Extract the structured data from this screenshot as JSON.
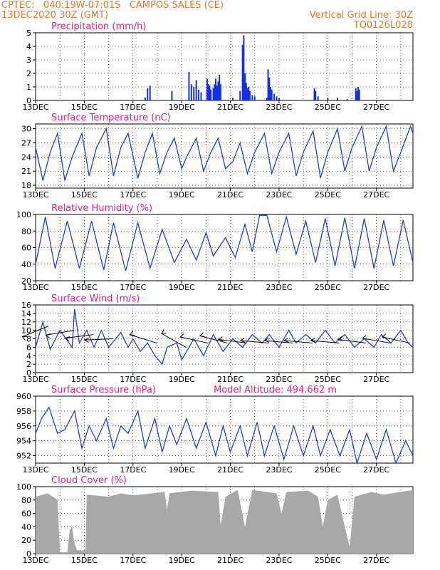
{
  "header": {
    "line1": "CPTEC:   040:19W-07:01S   CAMPOS SALES (CE)",
    "line2": "13DEC2020 30Z (GMT)",
    "grid_note": "Vertical Grid Line: 30Z",
    "code": "TQ0126L028"
  },
  "colors": {
    "header": "#e8782a",
    "title": "#e0208c",
    "line": "#1f3fd8",
    "bar": "#1430e0",
    "cloud": "#a8a8a8",
    "wind_vector": "#000000"
  },
  "x_ticks": [
    "13DEC",
    "15DEC",
    "17DEC",
    "19DEC",
    "21DEC",
    "23DEC",
    "25DEC",
    "27DEC"
  ],
  "chart_data": [
    {
      "id": "precip",
      "type": "bar",
      "title": "Precipitation (mm/h)",
      "ylim": [
        0,
        5
      ],
      "yticks": [
        0,
        1,
        2,
        3,
        4,
        5
      ],
      "values": [
        [
          4.5,
          0.2
        ],
        [
          4.6,
          0.9
        ],
        [
          4.7,
          1.1
        ],
        [
          5.6,
          0.7
        ],
        [
          6.3,
          2.1
        ],
        [
          6.4,
          1.2
        ],
        [
          6.5,
          1.0
        ],
        [
          6.6,
          1.5
        ],
        [
          6.7,
          0.8
        ],
        [
          6.8,
          0.6
        ],
        [
          7.05,
          1.6
        ],
        [
          7.1,
          1.2
        ],
        [
          7.15,
          1.1
        ],
        [
          7.2,
          0.8
        ],
        [
          7.3,
          0.9
        ],
        [
          7.35,
          1.2
        ],
        [
          7.4,
          1.6
        ],
        [
          7.45,
          1.1
        ],
        [
          7.5,
          1.4
        ],
        [
          7.55,
          1.9
        ],
        [
          7.6,
          1.2
        ],
        [
          8.1,
          0.2
        ],
        [
          8.4,
          0.7
        ],
        [
          8.5,
          4.1
        ],
        [
          8.55,
          4.8
        ],
        [
          8.6,
          2.0
        ],
        [
          8.65,
          1.3
        ],
        [
          8.7,
          0.9
        ],
        [
          8.75,
          1.0
        ],
        [
          8.8,
          0.7
        ],
        [
          8.9,
          0.4
        ],
        [
          9.0,
          0.3
        ],
        [
          9.5,
          0.2
        ],
        [
          9.55,
          2.3
        ],
        [
          9.6,
          1.7
        ],
        [
          9.65,
          1.0
        ],
        [
          9.7,
          0.8
        ],
        [
          9.8,
          0.5
        ],
        [
          9.9,
          0.3
        ],
        [
          10.0,
          0.2
        ],
        [
          11.45,
          0.9
        ],
        [
          11.5,
          0.7
        ],
        [
          11.6,
          0.3
        ],
        [
          12.0,
          0.2
        ],
        [
          12.4,
          0.2
        ],
        [
          12.8,
          0.1
        ],
        [
          13.15,
          0.9
        ],
        [
          13.2,
          0.7
        ],
        [
          13.25,
          1.0
        ],
        [
          13.3,
          0.8
        ]
      ]
    },
    {
      "id": "temp",
      "type": "line",
      "title": "Surface Temperature (nC)",
      "ylim": [
        17.4,
        31
      ],
      "yticks": [
        18,
        21,
        24,
        27,
        30
      ],
      "points": [
        [
          0,
          26
        ],
        [
          0.3,
          19
        ],
        [
          0.6,
          25
        ],
        [
          0.9,
          29
        ],
        [
          1.2,
          19
        ],
        [
          1.5,
          24
        ],
        [
          1.9,
          29
        ],
        [
          2.2,
          20
        ],
        [
          2.5,
          26
        ],
        [
          2.9,
          30
        ],
        [
          3.2,
          20
        ],
        [
          3.5,
          26
        ],
        [
          3.8,
          29
        ],
        [
          4.2,
          19.5
        ],
        [
          4.5,
          25
        ],
        [
          4.8,
          29
        ],
        [
          5.1,
          20.5
        ],
        [
          5.4,
          25
        ],
        [
          5.7,
          28
        ],
        [
          6.0,
          21.5
        ],
        [
          6.2,
          24
        ],
        [
          6.6,
          28
        ],
        [
          6.9,
          21
        ],
        [
          7.2,
          25
        ],
        [
          7.5,
          28
        ],
        [
          7.8,
          21.5
        ],
        [
          8.1,
          23
        ],
        [
          8.4,
          27
        ],
        [
          8.7,
          20.5
        ],
        [
          9.0,
          25
        ],
        [
          9.4,
          29
        ],
        [
          9.7,
          20.5
        ],
        [
          10.0,
          25
        ],
        [
          10.4,
          29
        ],
        [
          10.7,
          20
        ],
        [
          11.0,
          25
        ],
        [
          11.4,
          29.5
        ],
        [
          11.7,
          19.5
        ],
        [
          12.0,
          25
        ],
        [
          12.4,
          30
        ],
        [
          12.7,
          21
        ],
        [
          13.0,
          26
        ],
        [
          13.4,
          30.5
        ],
        [
          13.7,
          21
        ],
        [
          14.0,
          26
        ],
        [
          14.4,
          30.5
        ],
        [
          14.7,
          21
        ],
        [
          15.0,
          25
        ],
        [
          15.4,
          30.5
        ],
        [
          15.5,
          29
        ]
      ]
    },
    {
      "id": "rh",
      "type": "line",
      "title": "Relative Humidity (%)",
      "ylim": [
        20,
        100
      ],
      "yticks": [
        20,
        40,
        60,
        80,
        100
      ],
      "points": [
        [
          0,
          40
        ],
        [
          0.4,
          97
        ],
        [
          0.8,
          35
        ],
        [
          1.3,
          92
        ],
        [
          1.8,
          35
        ],
        [
          2.3,
          92
        ],
        [
          2.8,
          33
        ],
        [
          3.2,
          90
        ],
        [
          3.7,
          32
        ],
        [
          4.2,
          90
        ],
        [
          4.7,
          35
        ],
        [
          5.2,
          82
        ],
        [
          5.7,
          42
        ],
        [
          6.2,
          70
        ],
        [
          6.6,
          45
        ],
        [
          7.0,
          78
        ],
        [
          7.3,
          50
        ],
        [
          7.8,
          72
        ],
        [
          8.2,
          48
        ],
        [
          8.6,
          88
        ],
        [
          8.9,
          55
        ],
        [
          9.2,
          99
        ],
        [
          9.5,
          99
        ],
        [
          9.9,
          55
        ],
        [
          10.3,
          97
        ],
        [
          10.7,
          52
        ],
        [
          11.1,
          92
        ],
        [
          11.5,
          42
        ],
        [
          11.9,
          95
        ],
        [
          12.3,
          38
        ],
        [
          12.7,
          96
        ],
        [
          13.1,
          35
        ],
        [
          13.5,
          95
        ],
        [
          13.9,
          35
        ],
        [
          14.3,
          93
        ],
        [
          14.7,
          38
        ],
        [
          15.1,
          93
        ],
        [
          15.5,
          42
        ]
      ]
    },
    {
      "id": "wind",
      "type": "line",
      "title": "Surface Wind (m/s)",
      "ylim": [
        0,
        16
      ],
      "yticks": [
        0,
        2,
        4,
        6,
        8,
        10,
        12,
        14,
        16
      ],
      "points": [
        [
          0,
          6
        ],
        [
          0.3,
          12
        ],
        [
          0.6,
          5.5
        ],
        [
          1.0,
          10
        ],
        [
          1.5,
          6
        ],
        [
          1.6,
          15
        ],
        [
          1.8,
          7
        ],
        [
          2.1,
          10
        ],
        [
          2.4,
          6
        ],
        [
          2.7,
          10
        ],
        [
          3.0,
          6
        ],
        [
          3.5,
          9.5
        ],
        [
          3.8,
          6
        ],
        [
          4.0,
          8
        ],
        [
          4.3,
          5
        ],
        [
          4.6,
          7
        ],
        [
          4.9,
          4
        ],
        [
          5.2,
          2
        ],
        [
          5.4,
          6
        ],
        [
          5.8,
          7
        ],
        [
          6.0,
          3
        ],
        [
          6.5,
          8
        ],
        [
          6.9,
          4
        ],
        [
          7.3,
          9
        ],
        [
          7.7,
          5
        ],
        [
          8.1,
          8
        ],
        [
          8.5,
          6
        ],
        [
          8.9,
          9
        ],
        [
          9.3,
          7
        ],
        [
          9.6,
          9
        ],
        [
          10.0,
          6
        ],
        [
          10.4,
          10
        ],
        [
          10.7,
          7
        ],
        [
          11.1,
          9
        ],
        [
          11.5,
          7
        ],
        [
          11.9,
          10
        ],
        [
          12.3,
          7
        ],
        [
          12.7,
          9
        ],
        [
          13.1,
          6
        ],
        [
          13.5,
          8
        ],
        [
          13.9,
          6
        ],
        [
          14.2,
          9
        ],
        [
          14.6,
          7
        ],
        [
          15.0,
          10
        ],
        [
          15.3,
          7
        ],
        [
          15.5,
          6
        ]
      ]
    },
    {
      "id": "pressure",
      "type": "line",
      "title": "Surface Pressure (hPa)",
      "subtitle": "Model Altitude: 494.662 m",
      "ylim": [
        951,
        960
      ],
      "yticks": [
        952,
        954,
        956,
        958,
        960
      ],
      "points": [
        [
          0,
          955
        ],
        [
          0.25,
          957
        ],
        [
          0.55,
          958.5
        ],
        [
          0.9,
          955
        ],
        [
          1.2,
          955.5
        ],
        [
          1.6,
          958
        ],
        [
          1.9,
          953
        ],
        [
          2.2,
          956
        ],
        [
          2.5,
          954
        ],
        [
          2.9,
          957
        ],
        [
          3.2,
          953
        ],
        [
          3.5,
          956
        ],
        [
          3.8,
          955
        ],
        [
          4.2,
          958
        ],
        [
          4.5,
          953
        ],
        [
          4.9,
          957
        ],
        [
          5.2,
          952.5
        ],
        [
          5.5,
          956
        ],
        [
          5.8,
          953.5
        ],
        [
          6.2,
          957
        ],
        [
          6.6,
          953
        ],
        [
          7.0,
          956.5
        ],
        [
          7.4,
          952
        ],
        [
          7.7,
          956
        ],
        [
          8.0,
          952.5
        ],
        [
          8.4,
          956
        ],
        [
          8.7,
          952
        ],
        [
          9.1,
          956.5
        ],
        [
          9.4,
          952
        ],
        [
          9.8,
          956
        ],
        [
          10.2,
          951.5
        ],
        [
          10.6,
          956
        ],
        [
          11.0,
          952
        ],
        [
          11.4,
          956
        ],
        [
          11.7,
          952
        ],
        [
          12.1,
          955.5
        ],
        [
          12.5,
          952
        ],
        [
          12.9,
          955.5
        ],
        [
          13.2,
          951
        ],
        [
          13.6,
          955
        ],
        [
          14.0,
          951.5
        ],
        [
          14.4,
          955.5
        ],
        [
          14.8,
          951
        ],
        [
          15.2,
          954
        ],
        [
          15.5,
          952
        ]
      ]
    },
    {
      "id": "cloud",
      "type": "area",
      "title": "Cloud Cover (%)",
      "ylim": [
        0,
        100
      ],
      "yticks": [
        0,
        20,
        40,
        60,
        80,
        100
      ],
      "points": [
        [
          0,
          0
        ],
        [
          0,
          85
        ],
        [
          0.5,
          90
        ],
        [
          0.9,
          80
        ],
        [
          1.0,
          2
        ],
        [
          1.3,
          2
        ],
        [
          1.4,
          35
        ],
        [
          1.5,
          40
        ],
        [
          1.6,
          15
        ],
        [
          1.7,
          5
        ],
        [
          2.05,
          5
        ],
        [
          2.1,
          88
        ],
        [
          3.0,
          85
        ],
        [
          3.5,
          90
        ],
        [
          4.0,
          87
        ],
        [
          5.3,
          92
        ],
        [
          5.4,
          65
        ],
        [
          5.5,
          90
        ],
        [
          6.4,
          94
        ],
        [
          7.0,
          93
        ],
        [
          7.5,
          92
        ],
        [
          7.6,
          42
        ],
        [
          7.8,
          85
        ],
        [
          8.3,
          95
        ],
        [
          8.6,
          40
        ],
        [
          8.9,
          95
        ],
        [
          9.5,
          92
        ],
        [
          9.9,
          90
        ],
        [
          10.1,
          60
        ],
        [
          10.3,
          92
        ],
        [
          11.2,
          94
        ],
        [
          11.6,
          85
        ],
        [
          11.8,
          40
        ],
        [
          12.0,
          80
        ],
        [
          12.4,
          88
        ],
        [
          12.7,
          40
        ],
        [
          12.9,
          10
        ],
        [
          13.1,
          85
        ],
        [
          13.8,
          92
        ],
        [
          14.3,
          88
        ],
        [
          15.5,
          95
        ],
        [
          15.5,
          0
        ]
      ]
    }
  ]
}
